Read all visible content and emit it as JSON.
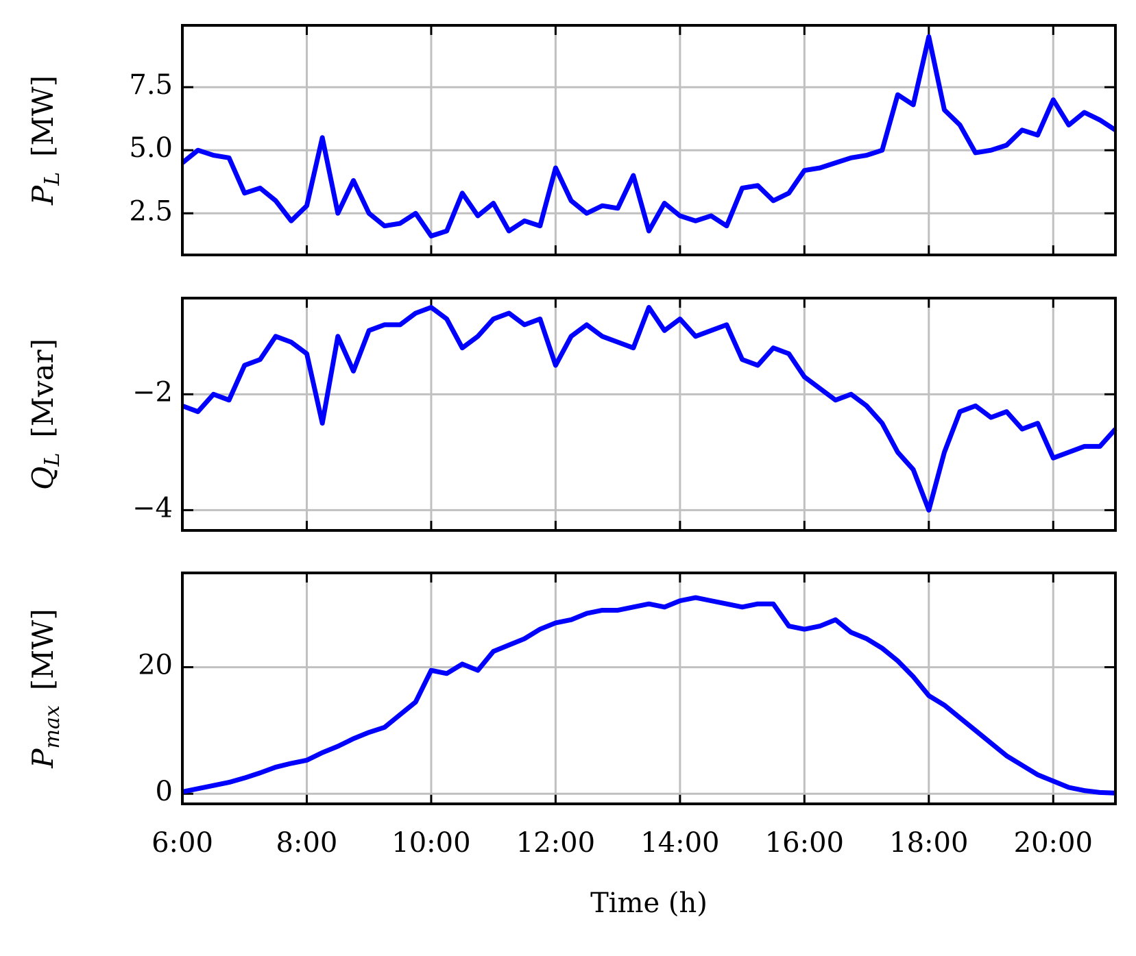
{
  "chart_data": [
    {
      "type": "line",
      "ylabel": {
        "symbol": "P",
        "subscript": "L",
        "unit": "[MW]"
      },
      "x": [
        6,
        6.25,
        6.5,
        6.75,
        7,
        7.25,
        7.5,
        7.75,
        8,
        8.25,
        8.5,
        8.75,
        9,
        9.25,
        9.5,
        9.75,
        10,
        10.25,
        10.5,
        10.75,
        11,
        11.25,
        11.5,
        11.75,
        12,
        12.25,
        12.5,
        12.75,
        13,
        13.25,
        13.5,
        13.75,
        14,
        14.25,
        14.5,
        14.75,
        15,
        15.25,
        15.5,
        15.75,
        16,
        16.25,
        16.5,
        16.75,
        17,
        17.25,
        17.5,
        17.75,
        18,
        18.25,
        18.5,
        18.75,
        19,
        19.25,
        19.5,
        19.75,
        20,
        20.25,
        20.5,
        20.75,
        21
      ],
      "series": [
        {
          "color": "#0000ff",
          "values": [
            4.5,
            5.0,
            4.8,
            4.7,
            3.3,
            3.5,
            3.0,
            2.2,
            2.8,
            5.5,
            2.5,
            3.8,
            2.5,
            2.0,
            2.1,
            2.5,
            1.6,
            1.8,
            3.3,
            2.4,
            2.9,
            1.8,
            2.2,
            2.0,
            4.3,
            3.0,
            2.5,
            2.8,
            2.7,
            4.0,
            1.8,
            2.9,
            2.4,
            2.2,
            2.4,
            2.0,
            3.5,
            3.6,
            3.0,
            3.3,
            4.2,
            4.3,
            4.5,
            4.7,
            4.8,
            5.0,
            7.2,
            6.8,
            9.5,
            6.6,
            6.0,
            4.9,
            5.0,
            5.2,
            5.8,
            5.6,
            7.0,
            6.0,
            6.5,
            6.2,
            5.8
          ]
        }
      ],
      "xlim": [
        6,
        21
      ],
      "ylim": [
        0.85,
        9.95
      ],
      "yticks": [
        2.5,
        {
          "value": 5,
          "label": "5.0"
        },
        7.5
      ],
      "grid": true
    },
    {
      "type": "line",
      "ylabel": {
        "symbol": "Q",
        "subscript": "L",
        "unit": "[Mvar]"
      },
      "x": [
        6,
        6.25,
        6.5,
        6.75,
        7,
        7.25,
        7.5,
        7.75,
        8,
        8.25,
        8.5,
        8.75,
        9,
        9.25,
        9.5,
        9.75,
        10,
        10.25,
        10.5,
        10.75,
        11,
        11.25,
        11.5,
        11.75,
        12,
        12.25,
        12.5,
        12.75,
        13,
        13.25,
        13.5,
        13.75,
        14,
        14.25,
        14.5,
        14.75,
        15,
        15.25,
        15.5,
        15.75,
        16,
        16.25,
        16.5,
        16.75,
        17,
        17.25,
        17.5,
        17.75,
        18,
        18.25,
        18.5,
        18.75,
        19,
        19.25,
        19.5,
        19.75,
        20,
        20.25,
        20.5,
        20.75,
        21
      ],
      "series": [
        {
          "color": "#0000ff",
          "values": [
            -2.2,
            -2.3,
            -2.0,
            -2.1,
            -1.5,
            -1.4,
            -1.0,
            -1.1,
            -1.3,
            -2.5,
            -1.0,
            -1.6,
            -0.9,
            -0.8,
            -0.8,
            -0.6,
            -0.5,
            -0.7,
            -1.2,
            -1.0,
            -0.7,
            -0.6,
            -0.8,
            -0.7,
            -1.5,
            -1.0,
            -0.8,
            -1.0,
            -1.1,
            -1.2,
            -0.5,
            -0.9,
            -0.7,
            -1.0,
            -0.9,
            -0.8,
            -1.4,
            -1.5,
            -1.2,
            -1.3,
            -1.7,
            -1.9,
            -2.1,
            -2.0,
            -2.2,
            -2.5,
            -3.0,
            -3.3,
            -4.0,
            -3.0,
            -2.3,
            -2.2,
            -2.4,
            -2.3,
            -2.6,
            -2.5,
            -3.1,
            -3.0,
            -2.9,
            -2.9,
            -2.6
          ]
        }
      ],
      "xlim": [
        6,
        21
      ],
      "ylim": [
        -4.35,
        -0.34
      ],
      "yticks": [
        {
          "value": -4,
          "label": "−4"
        },
        {
          "value": -2,
          "label": "−2"
        }
      ],
      "grid": true
    },
    {
      "type": "line",
      "ylabel": {
        "symbol": "P",
        "subscript": "max",
        "unit": "[MW]"
      },
      "xlabel": "Time (h)",
      "x": [
        6,
        6.25,
        6.5,
        6.75,
        7,
        7.25,
        7.5,
        7.75,
        8,
        8.25,
        8.5,
        8.75,
        9,
        9.25,
        9.5,
        9.75,
        10,
        10.25,
        10.5,
        10.75,
        11,
        11.25,
        11.5,
        11.75,
        12,
        12.25,
        12.5,
        12.75,
        13,
        13.25,
        13.5,
        13.75,
        14,
        14.25,
        14.5,
        14.75,
        15,
        15.25,
        15.5,
        15.75,
        16,
        16.25,
        16.5,
        16.75,
        17,
        17.25,
        17.5,
        17.75,
        18,
        18.25,
        18.5,
        18.75,
        19,
        19.25,
        19.5,
        19.75,
        20,
        20.25,
        20.5,
        20.75,
        21
      ],
      "series": [
        {
          "color": "#0000ff",
          "values": [
            0.3,
            0.8,
            1.3,
            1.8,
            2.5,
            3.3,
            4.2,
            4.8,
            5.3,
            6.5,
            7.5,
            8.7,
            9.7,
            10.5,
            12.5,
            14.5,
            19.5,
            19.0,
            20.5,
            19.5,
            22.5,
            23.5,
            24.5,
            26.0,
            27.0,
            27.5,
            28.5,
            29.0,
            29.0,
            29.5,
            30.0,
            29.5,
            30.5,
            31.0,
            30.5,
            30.0,
            29.5,
            30.0,
            30.0,
            26.5,
            26.0,
            26.5,
            27.5,
            25.5,
            24.5,
            23.0,
            21.0,
            18.5,
            15.5,
            14.0,
            12.0,
            10.0,
            8.0,
            6.0,
            4.5,
            3.0,
            2.0,
            1.0,
            0.5,
            0.2,
            0.1
          ]
        }
      ],
      "xlim": [
        6,
        21
      ],
      "xticks": [
        {
          "value": 6,
          "label": "6:00"
        },
        {
          "value": 8,
          "label": "8:00"
        },
        {
          "value": 10,
          "label": "10:00"
        },
        {
          "value": 12,
          "label": "12:00"
        },
        {
          "value": 14,
          "label": "14:00"
        },
        {
          "value": 16,
          "label": "16:00"
        },
        {
          "value": 18,
          "label": "18:00"
        },
        {
          "value": 20,
          "label": "20:00"
        }
      ],
      "ylim": [
        -1.6,
        34.9
      ],
      "yticks": [
        0,
        20
      ],
      "grid": true
    }
  ]
}
